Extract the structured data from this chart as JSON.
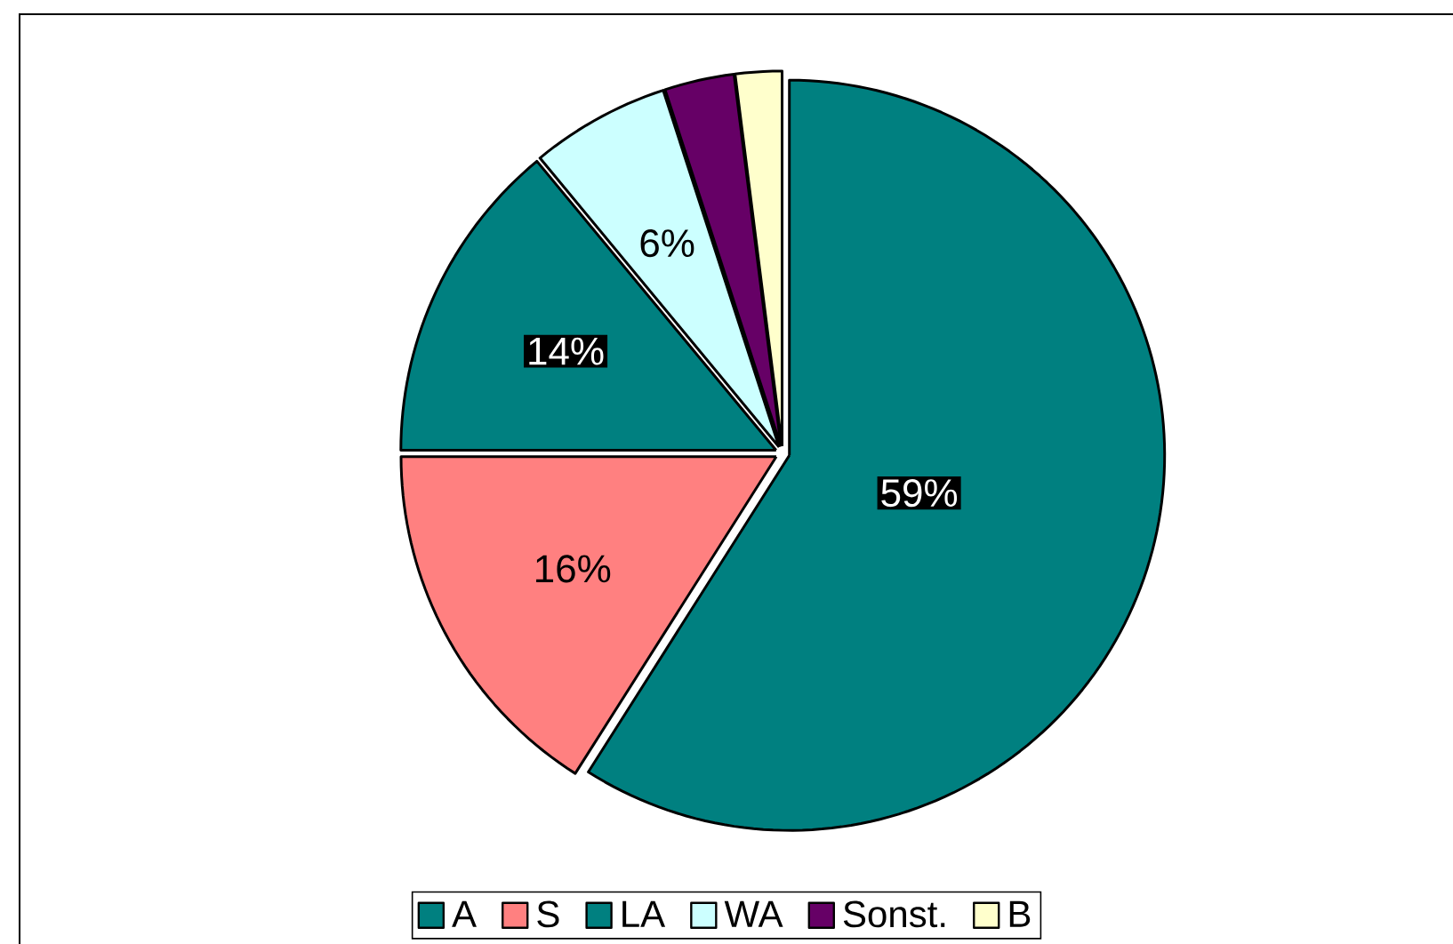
{
  "chart_data": {
    "type": "pie",
    "categories": [
      "A",
      "S",
      "LA",
      "WA",
      "Sonst.",
      "B"
    ],
    "values": [
      59,
      16,
      14,
      6,
      3,
      2
    ],
    "colors": [
      "#008080",
      "#ff8080",
      "#008080",
      "#ccffff",
      "#660066",
      "#ffffcc"
    ],
    "value_labels": [
      "59%",
      "16%",
      "14%",
      "6%",
      null,
      null
    ],
    "legend": "bottom"
  }
}
